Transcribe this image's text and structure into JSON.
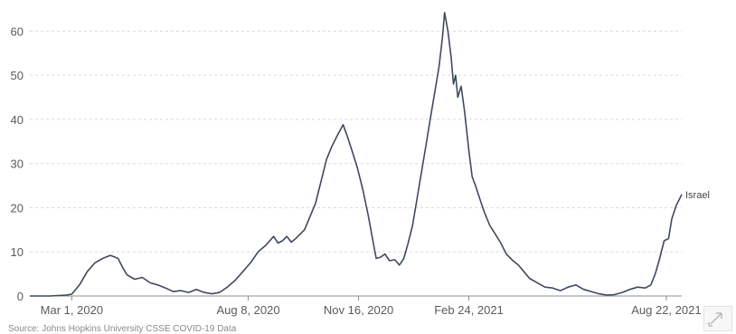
{
  "chart_data": {
    "type": "line",
    "title": "",
    "xlabel": "",
    "ylabel": "",
    "xlim": [
      "2020-01-23",
      "2021-09-05"
    ],
    "ylim": [
      0,
      65
    ],
    "yticks": [
      0,
      10,
      20,
      30,
      40,
      50,
      60
    ],
    "xtick_labels": [
      "Mar 1, 2020",
      "Aug 8, 2020",
      "Nov 16, 2020",
      "Feb 24, 2021",
      "Aug 22, 2021"
    ],
    "xtick_dates": [
      "2020-03-01",
      "2020-08-08",
      "2020-11-16",
      "2021-02-24",
      "2021-08-22"
    ],
    "grid": "horizontal dashed",
    "series": [
      {
        "name": "Israel",
        "color": "#3f4a5e",
        "points": [
          [
            "2020-01-23",
            0
          ],
          [
            "2020-02-10",
            0
          ],
          [
            "2020-02-25",
            0.2
          ],
          [
            "2020-03-01",
            0.4
          ],
          [
            "2020-03-08",
            2.5
          ],
          [
            "2020-03-15",
            5.5
          ],
          [
            "2020-03-22",
            7.5
          ],
          [
            "2020-03-29",
            8.5
          ],
          [
            "2020-04-05",
            9.2
          ],
          [
            "2020-04-12",
            8.5
          ],
          [
            "2020-04-16",
            6.5
          ],
          [
            "2020-04-20",
            4.8
          ],
          [
            "2020-04-27",
            3.8
          ],
          [
            "2020-05-04",
            4.2
          ],
          [
            "2020-05-11",
            3.0
          ],
          [
            "2020-05-18",
            2.5
          ],
          [
            "2020-05-25",
            1.8
          ],
          [
            "2020-06-01",
            1.0
          ],
          [
            "2020-06-08",
            1.2
          ],
          [
            "2020-06-15",
            0.8
          ],
          [
            "2020-06-22",
            1.5
          ],
          [
            "2020-06-29",
            0.8
          ],
          [
            "2020-07-06",
            0.5
          ],
          [
            "2020-07-13",
            0.8
          ],
          [
            "2020-07-20",
            2.0
          ],
          [
            "2020-07-27",
            3.5
          ],
          [
            "2020-08-03",
            5.5
          ],
          [
            "2020-08-10",
            7.5
          ],
          [
            "2020-08-17",
            10.0
          ],
          [
            "2020-08-24",
            11.5
          ],
          [
            "2020-08-31",
            13.5
          ],
          [
            "2020-09-04",
            12.0
          ],
          [
            "2020-09-08",
            12.5
          ],
          [
            "2020-09-12",
            13.5
          ],
          [
            "2020-09-16",
            12.2
          ],
          [
            "2020-09-20",
            13.0
          ],
          [
            "2020-09-24",
            14.0
          ],
          [
            "2020-09-28",
            15.0
          ],
          [
            "2020-10-03",
            18.0
          ],
          [
            "2020-10-08",
            21.0
          ],
          [
            "2020-10-13",
            26.0
          ],
          [
            "2020-10-18",
            31.0
          ],
          [
            "2020-10-23",
            34.0
          ],
          [
            "2020-10-28",
            36.5
          ],
          [
            "2020-11-02",
            38.8
          ],
          [
            "2020-11-06",
            36.0
          ],
          [
            "2020-11-10",
            33.0
          ],
          [
            "2020-11-15",
            29.0
          ],
          [
            "2020-11-20",
            24.0
          ],
          [
            "2020-11-25",
            18.0
          ],
          [
            "2020-11-29",
            12.5
          ],
          [
            "2020-12-02",
            8.5
          ],
          [
            "2020-12-06",
            8.8
          ],
          [
            "2020-12-10",
            9.5
          ],
          [
            "2020-12-14",
            8.0
          ],
          [
            "2020-12-19",
            8.2
          ],
          [
            "2020-12-23",
            7.0
          ],
          [
            "2020-12-27",
            8.5
          ],
          [
            "2020-12-31",
            12.0
          ],
          [
            "2021-01-04",
            16.0
          ],
          [
            "2021-01-08",
            22.0
          ],
          [
            "2021-01-12",
            28.0
          ],
          [
            "2021-01-16",
            34.0
          ],
          [
            "2021-01-20",
            40.0
          ],
          [
            "2021-01-24",
            46.0
          ],
          [
            "2021-01-28",
            52.0
          ],
          [
            "2021-01-31",
            58.5
          ],
          [
            "2021-02-02",
            64.2
          ],
          [
            "2021-02-05",
            60.0
          ],
          [
            "2021-02-08",
            54.0
          ],
          [
            "2021-02-10",
            48.0
          ],
          [
            "2021-02-12",
            50.0
          ],
          [
            "2021-02-14",
            45.0
          ],
          [
            "2021-02-17",
            47.5
          ],
          [
            "2021-02-20",
            42.0
          ],
          [
            "2021-02-24",
            33.0
          ],
          [
            "2021-02-27",
            27.0
          ],
          [
            "2021-03-02",
            25.0
          ],
          [
            "2021-03-06",
            22.0
          ],
          [
            "2021-03-10",
            19.0
          ],
          [
            "2021-03-15",
            16.0
          ],
          [
            "2021-03-20",
            14.0
          ],
          [
            "2021-03-25",
            12.0
          ],
          [
            "2021-03-30",
            9.5
          ],
          [
            "2021-04-05",
            8.0
          ],
          [
            "2021-04-10",
            7.0
          ],
          [
            "2021-04-15",
            5.5
          ],
          [
            "2021-04-20",
            4.0
          ],
          [
            "2021-04-27",
            3.0
          ],
          [
            "2021-05-04",
            2.0
          ],
          [
            "2021-05-11",
            1.8
          ],
          [
            "2021-05-18",
            1.2
          ],
          [
            "2021-05-25",
            2.0
          ],
          [
            "2021-06-01",
            2.5
          ],
          [
            "2021-06-08",
            1.5
          ],
          [
            "2021-06-15",
            1.0
          ],
          [
            "2021-06-22",
            0.5
          ],
          [
            "2021-06-29",
            0.2
          ],
          [
            "2021-07-06",
            0.3
          ],
          [
            "2021-07-13",
            0.8
          ],
          [
            "2021-07-20",
            1.5
          ],
          [
            "2021-07-27",
            2.0
          ],
          [
            "2021-08-03",
            1.8
          ],
          [
            "2021-08-08",
            2.5
          ],
          [
            "2021-08-12",
            5.0
          ],
          [
            "2021-08-16",
            8.5
          ],
          [
            "2021-08-20",
            12.5
          ],
          [
            "2021-08-24",
            13.0
          ],
          [
            "2021-08-27",
            17.5
          ],
          [
            "2021-08-31",
            20.5
          ],
          [
            "2021-09-03",
            22.0
          ],
          [
            "2021-09-05",
            23.0
          ]
        ]
      }
    ]
  },
  "source_text": "Source: Johns Hopkins University CSSE COVID-19 Data"
}
